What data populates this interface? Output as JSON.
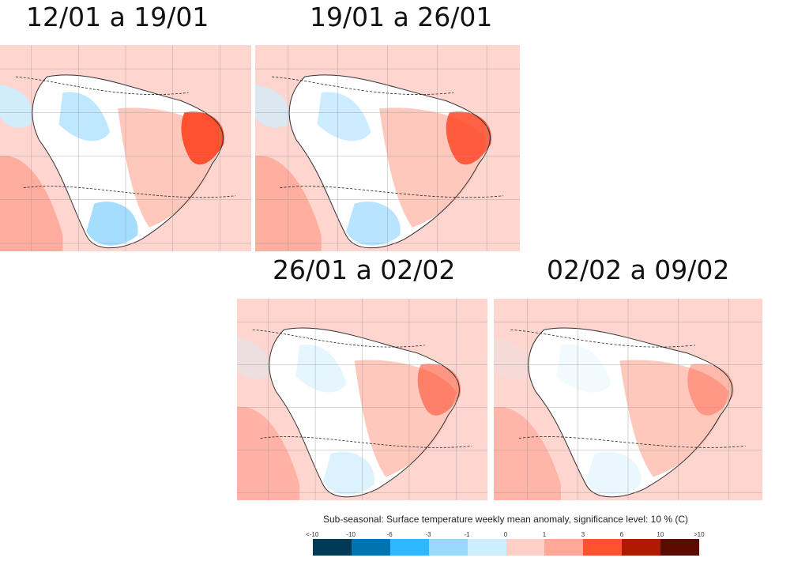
{
  "panels": [
    {
      "title": "12/01 a 19/01"
    },
    {
      "title": "19/01 a 26/01"
    },
    {
      "title": "26/01 a 02/02"
    },
    {
      "title": "02/02 a 09/02"
    }
  ],
  "legend": {
    "title": "Sub-seasonal: Surface temperature weekly mean anomaly, significance level: 10 % (C)",
    "ticks": [
      "<-10",
      "-10",
      "-6",
      "-3",
      "-1",
      "0",
      "1",
      "3",
      "6",
      "10",
      ">10"
    ],
    "colors": [
      "#003a57",
      "#0074b0",
      "#2fb8ff",
      "#9ad9ff",
      "#cceeff",
      "#ffd0c8",
      "#ffa898",
      "#ff5030",
      "#b01a00",
      "#5a0c00"
    ]
  }
}
